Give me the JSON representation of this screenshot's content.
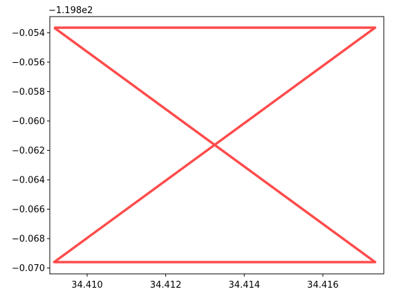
{
  "chart_data": {
    "type": "line",
    "title": "",
    "xlabel": "",
    "ylabel": "",
    "y_offset_text": "−1.198e2",
    "xlim": [
      34.40905,
      34.41755
    ],
    "ylim": [
      -0.0704,
      -0.0529
    ],
    "xticks": [
      34.41,
      34.412,
      34.414,
      34.416
    ],
    "xtick_labels": [
      "34.410",
      "34.412",
      "34.414",
      "34.416"
    ],
    "yticks": [
      -0.054,
      -0.056,
      -0.058,
      -0.06,
      -0.062,
      -0.064,
      -0.066,
      -0.068,
      -0.07
    ],
    "ytick_labels": [
      "−0.054",
      "−0.056",
      "−0.058",
      "−0.060",
      "−0.062",
      "−0.064",
      "−0.066",
      "−0.068",
      "−0.070"
    ],
    "grid": false,
    "series": [
      {
        "color": "#ff4b4b",
        "x": [
          34.40916,
          34.41733,
          34.40916,
          34.41733,
          34.40916
        ],
        "y": [
          -0.05365,
          -0.05365,
          -0.0696,
          -0.0696,
          -0.05365
        ]
      }
    ]
  }
}
